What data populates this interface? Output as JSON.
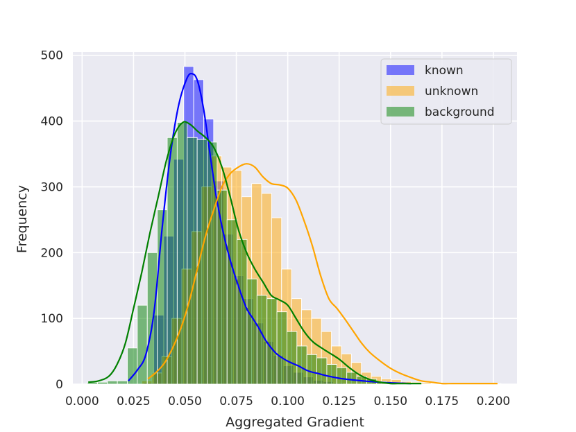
{
  "chart_data": {
    "type": "bar",
    "xlabel": "Aggregated Gradient",
    "ylabel": "Frequency",
    "xlim": [
      -0.0045,
      0.2115
    ],
    "ylim": [
      0,
      505
    ],
    "x_ticks": [
      "0.000",
      "0.025",
      "0.050",
      "0.075",
      "0.100",
      "0.125",
      "0.150",
      "0.175",
      "0.200"
    ],
    "y_ticks": [
      "0",
      "100",
      "200",
      "300",
      "400",
      "500"
    ],
    "grid": true,
    "legend_position": "upper right",
    "bin_width": 0.00485,
    "series": [
      {
        "name": "known",
        "color": "#0000ff",
        "bin_start": 0.03,
        "counts": [
          2,
          105,
          225,
          342,
          483,
          463,
          403,
          309,
          228,
          165,
          130,
          93,
          65,
          44,
          28,
          18,
          11,
          6,
          4,
          2
        ],
        "kde_x": [
          0.0225,
          0.027,
          0.031,
          0.035,
          0.039,
          0.043,
          0.047,
          0.051,
          0.0535,
          0.056,
          0.059,
          0.062,
          0.065,
          0.068,
          0.071,
          0.074,
          0.077,
          0.08,
          0.083,
          0.086,
          0.089,
          0.092,
          0.095,
          0.1,
          0.105,
          0.11,
          0.115,
          0.12,
          0.125,
          0.13,
          0.14,
          0.15,
          0.16
        ],
        "kde_y": [
          5,
          22,
          45,
          110,
          240,
          350,
          425,
          465,
          472,
          462,
          420,
          355,
          290,
          240,
          200,
          168,
          140,
          115,
          100,
          85,
          68,
          55,
          45,
          35,
          28,
          20,
          16,
          12,
          9,
          7,
          4,
          2,
          1
        ]
      },
      {
        "name": "unknown",
        "color": "#ffa500",
        "bin_start": 0.0291,
        "counts": [
          5,
          17,
          42,
          100,
          175,
          232,
          300,
          347,
          330,
          325,
          285,
          305,
          290,
          253,
          175,
          130,
          113,
          100,
          80,
          58,
          46,
          33,
          18,
          12,
          8,
          7,
          4,
          3,
          2,
          1,
          1,
          1,
          1,
          1,
          1,
          1
        ],
        "kde_x": [
          0.032,
          0.036,
          0.04,
          0.044,
          0.048,
          0.052,
          0.056,
          0.06,
          0.064,
          0.068,
          0.072,
          0.076,
          0.08,
          0.084,
          0.088,
          0.092,
          0.096,
          0.1,
          0.104,
          0.108,
          0.112,
          0.116,
          0.12,
          0.124,
          0.128,
          0.132,
          0.136,
          0.14,
          0.145,
          0.15,
          0.155,
          0.16,
          0.165,
          0.17,
          0.175,
          0.18,
          0.185,
          0.19,
          0.195,
          0.202
        ],
        "kde_y": [
          8,
          18,
          32,
          55,
          85,
          125,
          175,
          225,
          265,
          300,
          320,
          330,
          335,
          330,
          315,
          305,
          303,
          298,
          280,
          248,
          210,
          165,
          130,
          115,
          98,
          80,
          62,
          48,
          35,
          24,
          16,
          10,
          5,
          3,
          1,
          1,
          1,
          1,
          1,
          1
        ]
      },
      {
        "name": "background",
        "color": "#008000",
        "bin_start": 0.0026,
        "counts": [
          3,
          3,
          5,
          5,
          55,
          120,
          200,
          265,
          375,
          398,
          375,
          372,
          368,
          295,
          250,
          220,
          160,
          135,
          130,
          110,
          80,
          58,
          45,
          40,
          30,
          25,
          18,
          12,
          8,
          4,
          2,
          2,
          1
        ],
        "kde_x": [
          0.003,
          0.008,
          0.013,
          0.017,
          0.021,
          0.025,
          0.029,
          0.033,
          0.037,
          0.041,
          0.045,
          0.049,
          0.0525,
          0.056,
          0.06,
          0.064,
          0.068,
          0.072,
          0.076,
          0.08,
          0.084,
          0.088,
          0.092,
          0.096,
          0.1,
          0.104,
          0.108,
          0.112,
          0.116,
          0.12,
          0.125,
          0.13,
          0.135,
          0.14,
          0.145,
          0.15,
          0.155,
          0.16,
          0.165
        ],
        "kde_y": [
          3,
          5,
          12,
          30,
          62,
          115,
          170,
          230,
          285,
          340,
          380,
          398,
          395,
          385,
          375,
          360,
          330,
          285,
          235,
          200,
          175,
          155,
          135,
          128,
          120,
          100,
          80,
          65,
          56,
          48,
          38,
          25,
          14,
          7,
          3,
          1,
          1,
          1,
          1
        ]
      }
    ]
  }
}
